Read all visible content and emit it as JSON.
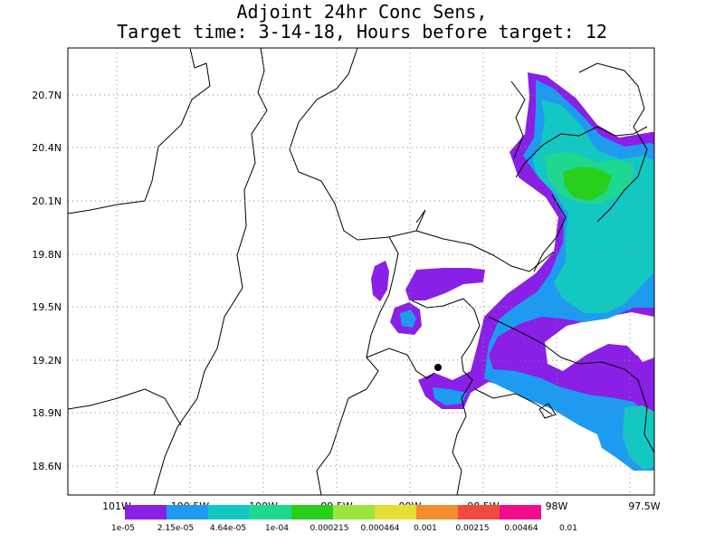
{
  "title": {
    "line1": "Adjoint 24hr Conc Sens,",
    "line2": "Target time: 3-14-18, Hours before target: 12"
  },
  "map": {
    "lat_ticks": [
      "20.7N",
      "20.4N",
      "20.1N",
      "19.8N",
      "19.5N",
      "19.2N",
      "18.9N",
      "18.6N"
    ],
    "lon_ticks": [
      "101W",
      "100.5W",
      "100W",
      "99.5W",
      "99W",
      "98.5W",
      "98W",
      "97.5W"
    ],
    "marker": "target-location-dot"
  },
  "legend": {
    "labels": [
      "1e-05",
      "2.15e-05",
      "4.64e-05",
      "1e-04",
      "0.000215",
      "0.000464",
      "0.001",
      "0.00215",
      "0.00464",
      "0.01"
    ],
    "colors": [
      "#8a1fe6",
      "#1e9bf0",
      "#13c8c3",
      "#1fd890",
      "#28cf1c",
      "#9ce53f",
      "#e6dd37",
      "#f28c2c",
      "#f04a3e",
      "#f00c8c"
    ]
  }
}
